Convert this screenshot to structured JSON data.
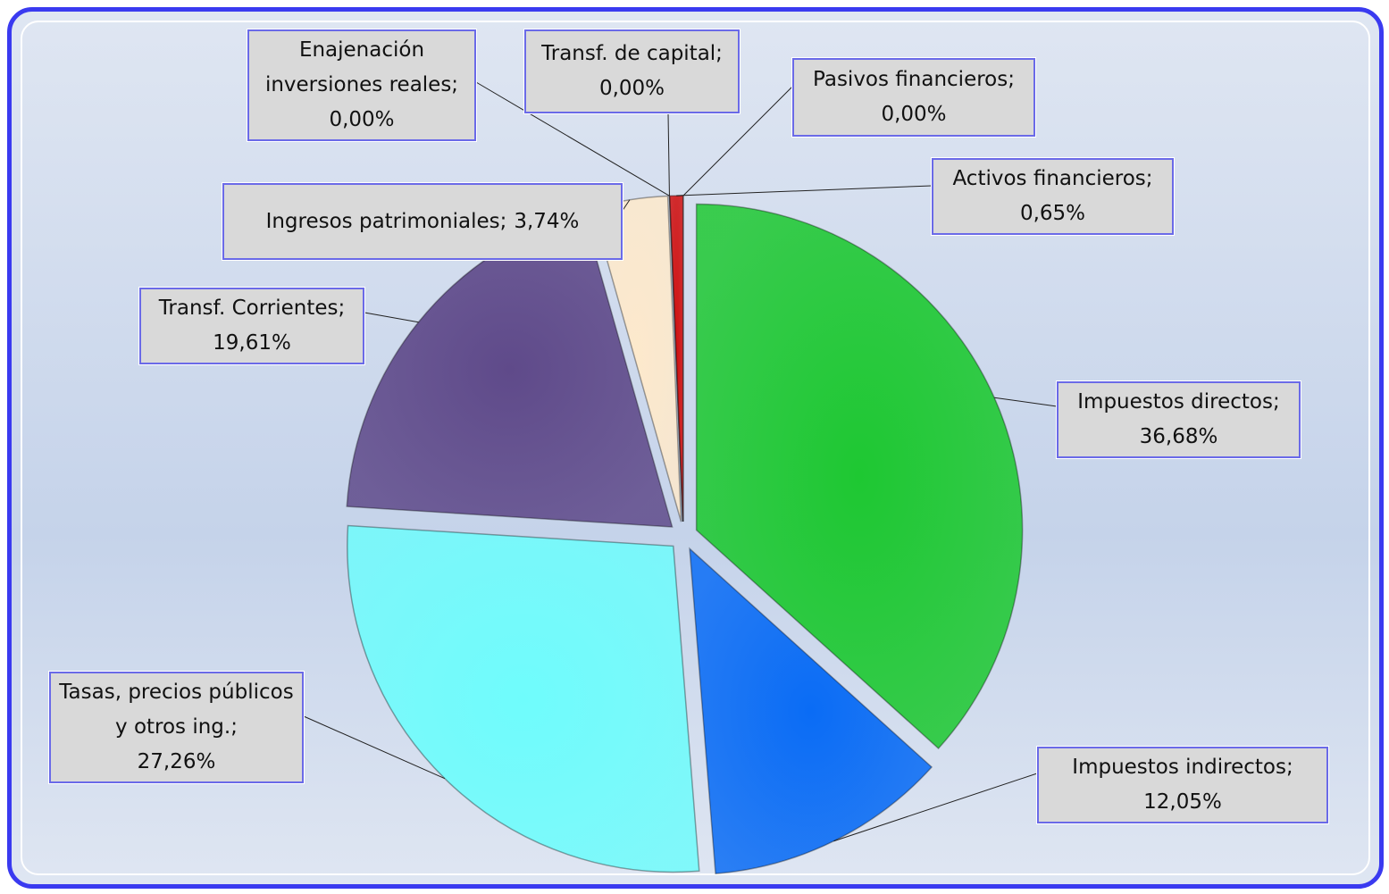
{
  "chart_data": {
    "type": "pie",
    "categories": [
      "Impuestos directos;",
      "Impuestos indirectos;",
      "Tasas, precios públicos y otros ing.;",
      "Transf. Corrientes;",
      "Ingresos patrimoniales;",
      "Enajenación inversiones reales;",
      "Transf. de capital;",
      "Activos financieros;",
      "Pasivos financieros;"
    ],
    "values": [
      36.68,
      12.05,
      27.26,
      19.61,
      3.74,
      0,
      0,
      0.65,
      0
    ],
    "value_labels": [
      "36,68%",
      "12,05%",
      "27,26%",
      "19,61%",
      "3,74%",
      "0,00%",
      "0,00%",
      "0,65%",
      "0,00%"
    ],
    "colors": [
      "#1ec832",
      "#0a6cf5",
      "#6ffcfc",
      "#5f4a8a",
      "#fde9cc",
      "#9c9c9c",
      "#9c9c9c",
      "#d01010",
      "#9c9c9c"
    ]
  }
}
